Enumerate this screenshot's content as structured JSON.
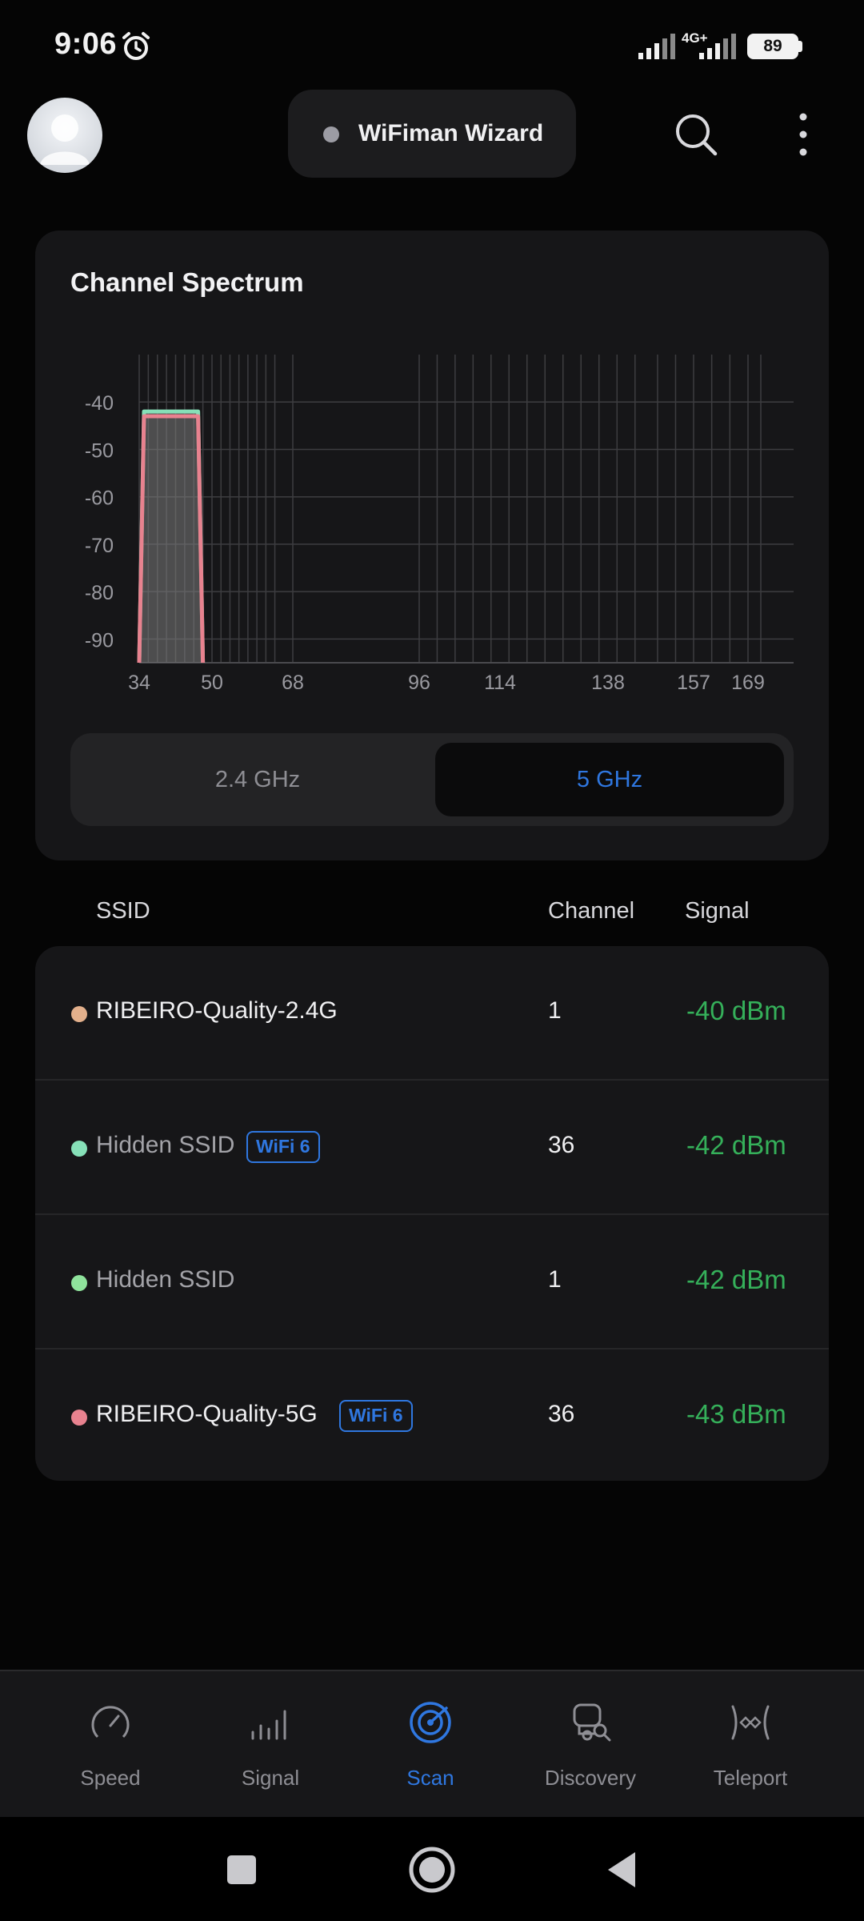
{
  "status_bar": {
    "time": "9:06",
    "network_type": "4G+",
    "battery": "89"
  },
  "header": {
    "wizard_label": "WiFiman Wizard"
  },
  "spectrum": {
    "title": "Channel Spectrum",
    "band_options": [
      "2.4 GHz",
      "5 GHz"
    ],
    "selected_band": "5 GHz"
  },
  "chart_data": {
    "type": "area",
    "title": "Channel Spectrum",
    "xlabel": "",
    "ylabel": "",
    "x_tick_labels": [
      "34",
      "50",
      "68",
      "96",
      "114",
      "138",
      "157",
      "169"
    ],
    "y_tick_labels": [
      "-40",
      "-50",
      "-60",
      "-70",
      "-80",
      "-90"
    ],
    "xlim": [
      34,
      175
    ],
    "ylim": [
      -95,
      -30
    ],
    "grid": true,
    "series": [
      {
        "color": "#86e0b8",
        "channel": 36,
        "signal_dbm": -42,
        "channel_range": [
          34,
          48
        ]
      },
      {
        "color": "#e8828f",
        "channel": 36,
        "signal_dbm": -43,
        "channel_range": [
          34,
          48
        ]
      }
    ]
  },
  "networks": {
    "headers": {
      "ssid": "SSID",
      "channel": "Channel",
      "signal": "Signal"
    },
    "rows": [
      {
        "ssid": "RIBEIRO-Quality-2.4G",
        "badge": "",
        "channel": "1",
        "signal": "-40 dBm",
        "dot_color": "#e3b08c",
        "muted": false
      },
      {
        "ssid": "Hidden SSID",
        "badge": "WiFi 6",
        "channel": "36",
        "signal": "-42 dBm",
        "dot_color": "#86e0b8",
        "muted": true
      },
      {
        "ssid": "Hidden SSID",
        "badge": "",
        "channel": "1",
        "signal": "-42 dBm",
        "dot_color": "#8fe39c",
        "muted": true
      },
      {
        "ssid": "RIBEIRO-Quality-5G",
        "badge": "WiFi 6",
        "channel": "36",
        "signal": "-43 dBm",
        "dot_color": "#e8828f",
        "muted": false
      }
    ]
  },
  "bottom_nav": {
    "items": [
      {
        "label": "Speed",
        "icon": "speedometer-icon",
        "active": false
      },
      {
        "label": "Signal",
        "icon": "signal-bars-icon",
        "active": false
      },
      {
        "label": "Scan",
        "icon": "radar-icon",
        "active": true
      },
      {
        "label": "Discovery",
        "icon": "device-search-icon",
        "active": false
      },
      {
        "label": "Teleport",
        "icon": "teleport-icon",
        "active": false
      }
    ]
  },
  "colors": {
    "accent": "#2f77e0",
    "signal_good": "#35b05a",
    "background": "#050505",
    "card": "#161618"
  }
}
